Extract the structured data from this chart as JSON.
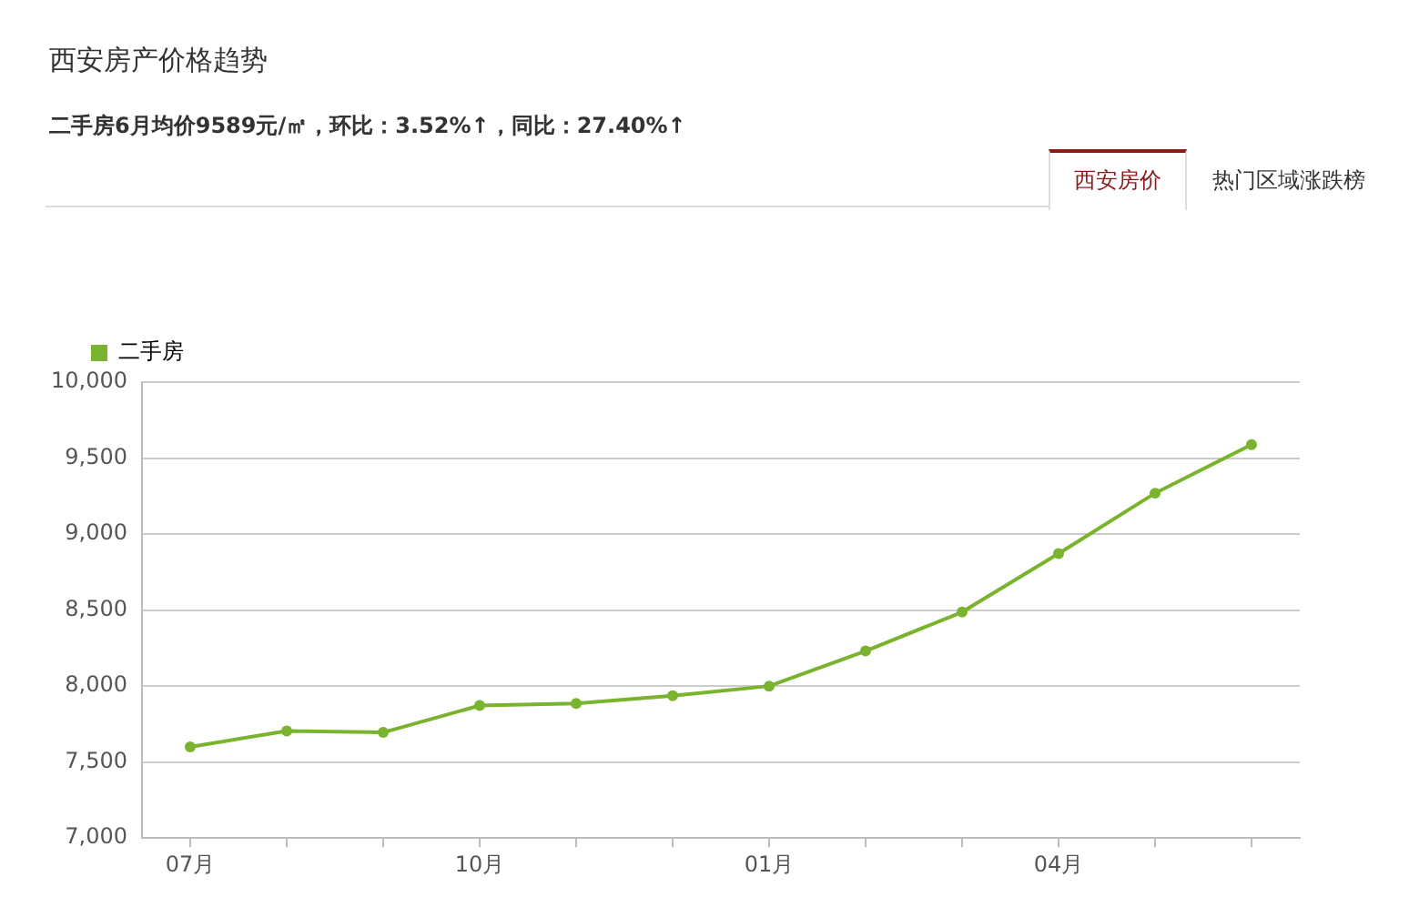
{
  "chart_data": {
    "type": "line",
    "title": "西安房产价格趋势",
    "subtitle": "二手房6月均价9589元/㎡，环比：3.52%↑，同比：27.40%↑",
    "annotations": [
      "西安房价",
      "热门区域涨跌榜"
    ],
    "categories": [
      "07月",
      null,
      null,
      "10月",
      null,
      null,
      "01月",
      null,
      null,
      "04月",
      null,
      null
    ],
    "series": [
      {
        "name": "二手房",
        "color": "#7ab32e",
        "values": [
          7600,
          7705,
          7695,
          7872,
          7885,
          7936,
          8000,
          8231,
          8487,
          8872,
          9269,
          9589
        ]
      }
    ],
    "ylim": [
      7000,
      10000
    ],
    "yticks": [
      {
        "value": 7000,
        "label": "7,000"
      },
      {
        "value": 7500,
        "label": "7,500"
      },
      {
        "value": 8000,
        "label": "8,000"
      },
      {
        "value": 8500,
        "label": "8,500"
      },
      {
        "value": 9000,
        "label": "9,000"
      },
      {
        "value": 9500,
        "label": "9,500"
      },
      {
        "value": 10000,
        "label": "10,000"
      }
    ],
    "grid": "y",
    "legend": "top left",
    "marker": "circle",
    "line_style": "solid"
  }
}
